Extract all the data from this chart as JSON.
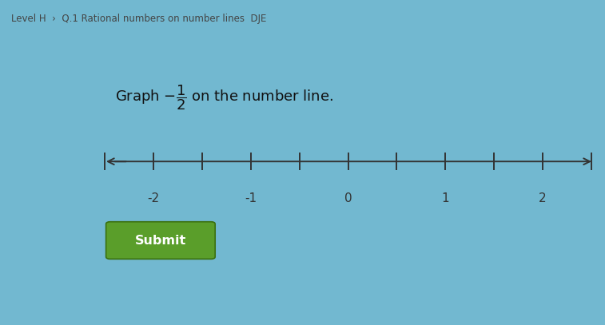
{
  "header_text": "Level H  ›  Q.1 Rational numbers on number lines  DJE",
  "header_bg": "#e8f0f5",
  "header_text_color": "#444444",
  "card_bg": "#e8e5de",
  "instruction_text": "Graph $-\\dfrac{1}{2}$ on the number line.",
  "tick_positions": [
    -2.5,
    -2.0,
    -1.5,
    -1.0,
    -0.5,
    0.0,
    0.5,
    1.0,
    1.5,
    2.0,
    2.5
  ],
  "labeled_ticks": [
    -2,
    -1,
    0,
    1,
    2
  ],
  "tick_labels": [
    "-2",
    "-1",
    "0",
    "1",
    "2"
  ],
  "submit_bg": "#5a9e2a",
  "submit_text": "Submit",
  "submit_text_color": "#ffffff",
  "fig_bg": "#72b8d0",
  "number_line_color": "#333333",
  "tick_color": "#333333",
  "label_color": "#333333",
  "nl_range_min": -2.5,
  "nl_range_max": 2.5
}
